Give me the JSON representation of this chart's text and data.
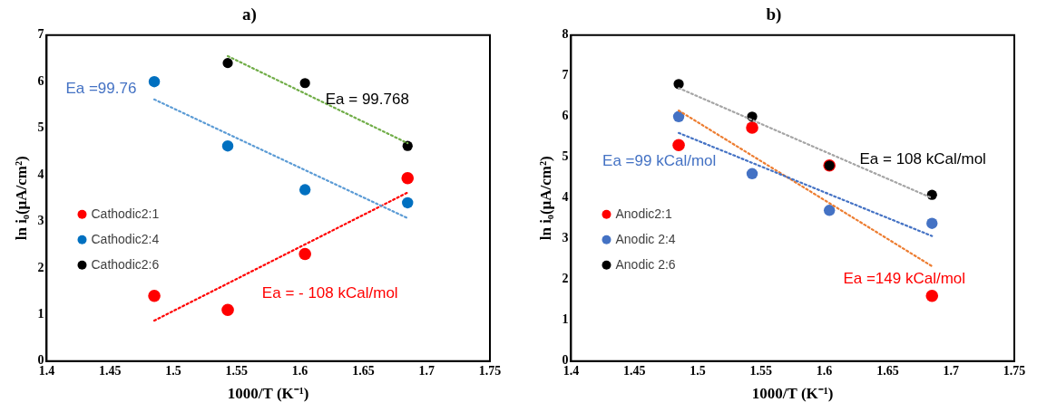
{
  "chart_data": [
    {
      "type": "scatter",
      "title": "a)",
      "xlabel": "1000/T (K⁻¹)",
      "ylabel": "ln i₀(μA/cm²)",
      "x": [
        1.485,
        1.543,
        1.604,
        1.685
      ],
      "series": [
        {
          "name": "Cathodic2:1",
          "color": "#ff0000",
          "values": [
            1.4,
            1.1,
            2.3,
            3.93
          ]
        },
        {
          "name": "Cathodic2:4",
          "color": "#0070c0",
          "values": [
            6.0,
            4.62,
            3.68,
            3.4
          ]
        },
        {
          "name": "Cathodic2:6",
          "color": "#000000",
          "values": [
            null,
            6.4,
            5.97,
            4.62
          ]
        },
        {
          "type": "line",
          "color": "#ff0000",
          "x": [
            1.485,
            1.685
          ],
          "values": [
            0.87,
            3.62
          ],
          "marker": "none",
          "line_style": "dotted"
        },
        {
          "type": "line",
          "color": "#5b9bd5",
          "x": [
            1.485,
            1.685
          ],
          "values": [
            5.62,
            3.07
          ],
          "marker": "none",
          "line_style": "dotted"
        },
        {
          "type": "line",
          "color": "#70ad47",
          "x": [
            1.543,
            1.685
          ],
          "values": [
            6.55,
            4.68
          ],
          "marker": "none",
          "line_style": "dotted"
        }
      ],
      "annotations": [
        "Ea = - 108 kCal/mol",
        "Ea =99.76",
        "Ea = 99.768"
      ],
      "xlim": [
        1.4,
        1.75
      ],
      "xticks": [
        1.4,
        1.45,
        1.5,
        1.55,
        1.6,
        1.65,
        1.7,
        1.75
      ],
      "ylim": [
        0,
        7
      ],
      "yticks": [
        0,
        1,
        2,
        3,
        4,
        5,
        6,
        7
      ],
      "marker": "circle",
      "grid": false,
      "legend": "left"
    },
    {
      "type": "scatter",
      "title": "b)",
      "xlabel": "1000/T (K⁻¹)",
      "ylabel": "ln i₀(μA/cm²)",
      "x": [
        1.485,
        1.543,
        1.604,
        1.685
      ],
      "series": [
        {
          "name": "Anodic2:1",
          "color": "#ff0000",
          "values": [
            5.3,
            5.73,
            4.8,
            1.6
          ]
        },
        {
          "name": "Anodic 2:4",
          "color": "#4472c4",
          "values": [
            6.0,
            4.6,
            3.7,
            3.38
          ]
        },
        {
          "name": "Anodic 2:6",
          "color": "#000000",
          "values": [
            6.8,
            6.0,
            4.8,
            4.08
          ]
        },
        {
          "type": "line",
          "color": "#ed7d31",
          "x": [
            1.485,
            1.685
          ],
          "values": [
            6.15,
            2.33
          ],
          "marker": "none",
          "line_style": "dotted"
        },
        {
          "type": "line",
          "color": "#4472c4",
          "x": [
            1.485,
            1.685
          ],
          "values": [
            5.6,
            3.07
          ],
          "marker": "none",
          "line_style": "dotted"
        },
        {
          "type": "line",
          "color": "#a5a5a5",
          "x": [
            1.485,
            1.685
          ],
          "values": [
            6.7,
            4.0
          ],
          "marker": "none",
          "line_style": "dotted"
        }
      ],
      "annotations": [
        "Ea =149 kCal/mol",
        "Ea =99 kCal/mol",
        "Ea = 108 kCal/mol"
      ],
      "xlim": [
        1.4,
        1.75
      ],
      "xticks": [
        1.4,
        1.45,
        1.5,
        1.55,
        1.6,
        1.65,
        1.7,
        1.75
      ],
      "ylim": [
        0,
        8
      ],
      "yticks": [
        0,
        1,
        2,
        3,
        4,
        5,
        6,
        7,
        8
      ],
      "marker": "circle",
      "grid": false,
      "legend": "left"
    }
  ]
}
